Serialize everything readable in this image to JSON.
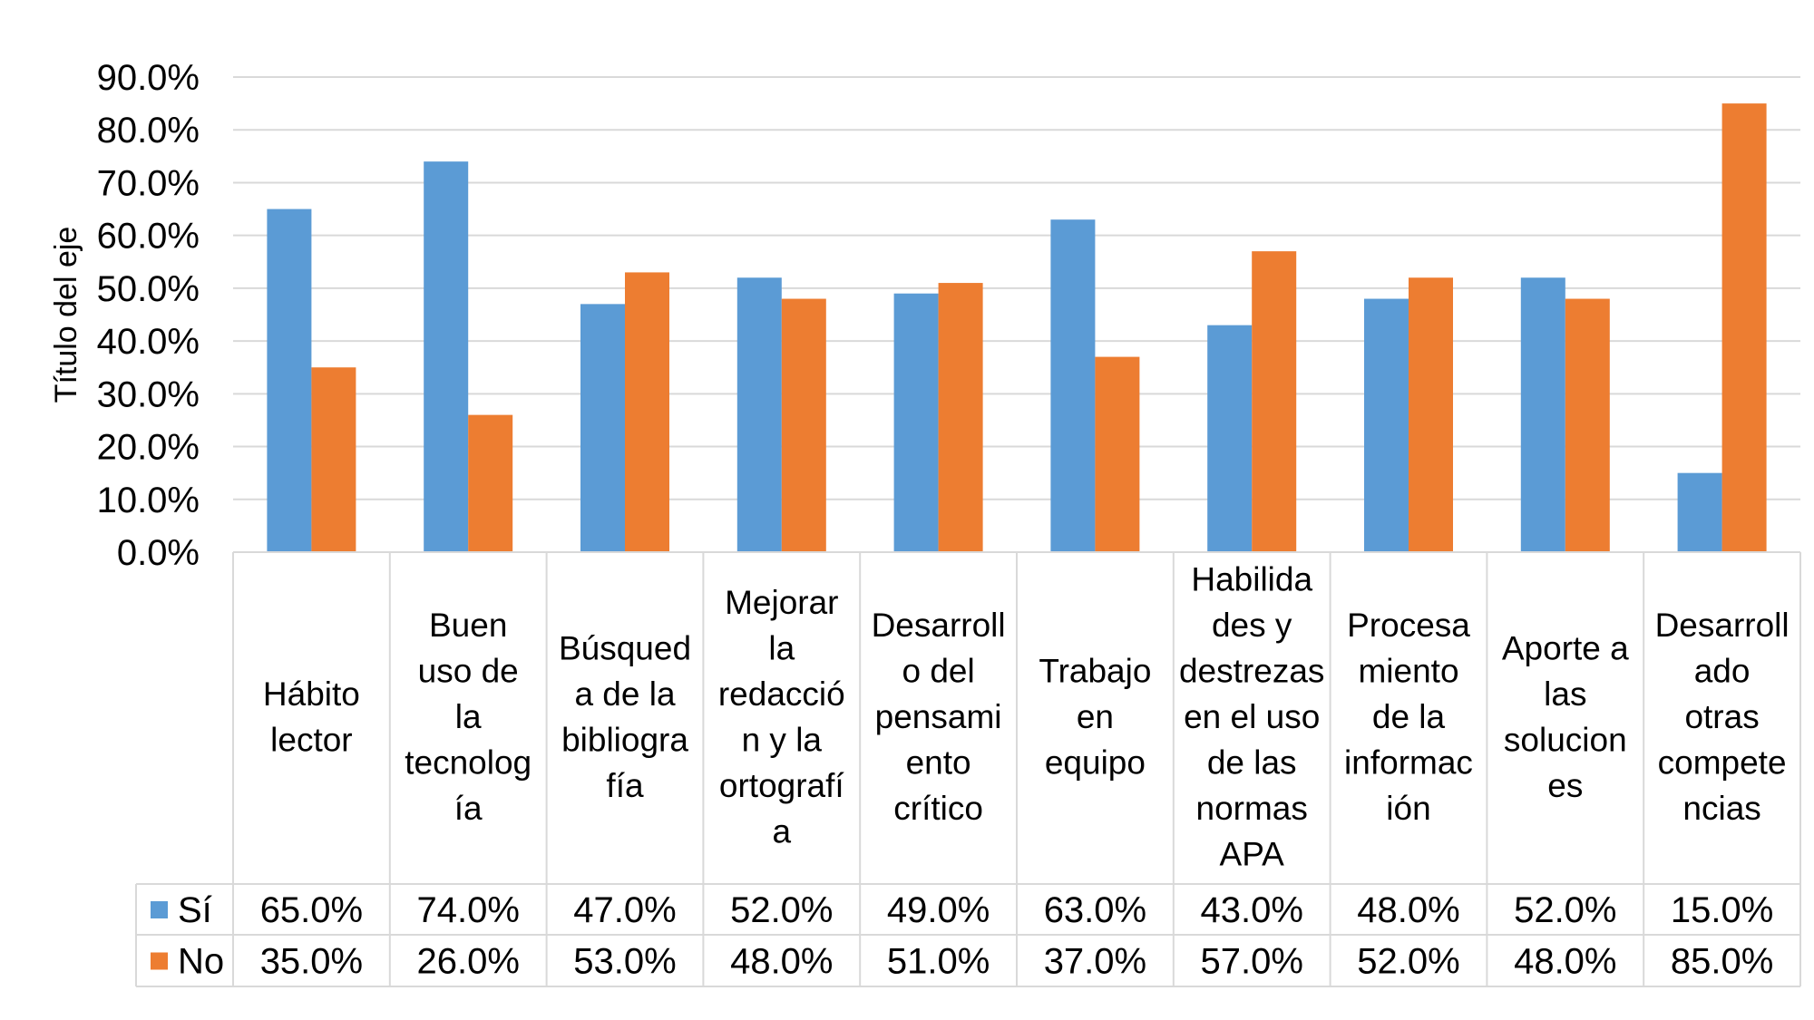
{
  "chart_data": {
    "type": "bar",
    "title": "",
    "xlabel": "",
    "ylabel": "Título del eje",
    "ylim": [
      0,
      90
    ],
    "yticks": [
      "0.0%",
      "10.0%",
      "20.0%",
      "30.0%",
      "40.0%",
      "50.0%",
      "60.0%",
      "70.0%",
      "80.0%",
      "90.0%"
    ],
    "grid": true,
    "legend": "data-table-left",
    "categories": [
      [
        "Hábito",
        "lector"
      ],
      [
        "Buen",
        "uso de",
        "la",
        "tecnolog",
        "ía"
      ],
      [
        "Búsqued",
        "a de la",
        "bibliogra",
        "fía"
      ],
      [
        "Mejorar",
        "la",
        "redacció",
        "n y la",
        "ortografí",
        "a"
      ],
      [
        "Desarroll",
        "o del",
        "pensami",
        "ento",
        "crítico"
      ],
      [
        "Trabajo",
        "en",
        "equipo"
      ],
      [
        "Habilida",
        "des y",
        "destrezas",
        "en el uso",
        "de las",
        "normas",
        "APA"
      ],
      [
        "Procesa",
        "miento",
        "de la",
        "informac",
        "ión"
      ],
      [
        "Aporte a",
        "las",
        "solucion",
        "es"
      ],
      [
        "Desarroll",
        "ado",
        "otras",
        "compete",
        "ncias"
      ]
    ],
    "series": [
      {
        "name": "Sí",
        "color": "#5b9bd5",
        "values": [
          65,
          74,
          47,
          52,
          49,
          63,
          43,
          48,
          52,
          15
        ],
        "labels": [
          "65.0%",
          "74.0%",
          "47.0%",
          "52.0%",
          "49.0%",
          "63.0%",
          "43.0%",
          "48.0%",
          "52.0%",
          "15.0%"
        ]
      },
      {
        "name": "No",
        "color": "#ed7d31",
        "values": [
          35,
          26,
          53,
          48,
          51,
          37,
          57,
          52,
          48,
          85
        ],
        "labels": [
          "35.0%",
          "26.0%",
          "53.0%",
          "48.0%",
          "51.0%",
          "37.0%",
          "57.0%",
          "52.0%",
          "48.0%",
          "85.0%"
        ]
      }
    ]
  }
}
